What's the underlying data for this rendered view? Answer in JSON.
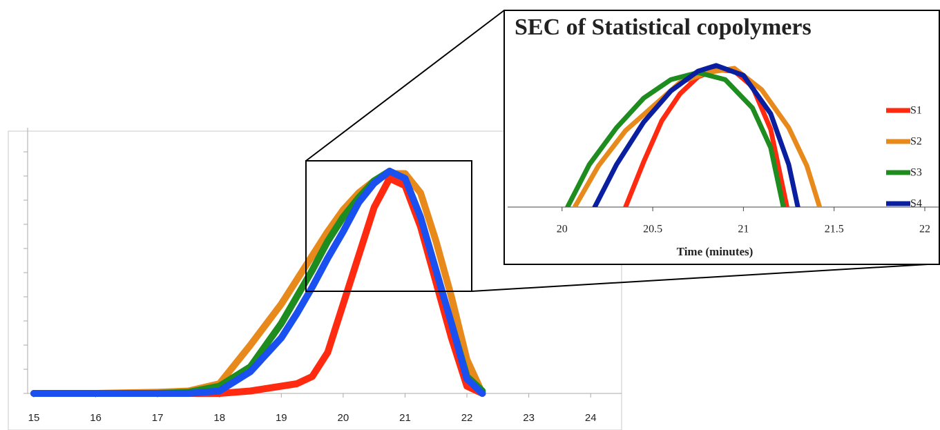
{
  "chart_data": [
    {
      "type": "line",
      "xlim": [
        14.9,
        24.5
      ],
      "xticks": [
        15,
        16,
        17,
        18,
        19,
        20,
        21,
        22,
        23,
        24
      ],
      "ylim": [
        0,
        1.1
      ],
      "yticks": [
        0,
        0.1,
        0.2,
        0.3,
        0.4,
        0.5,
        0.6,
        0.7,
        0.8,
        0.9,
        1.0
      ],
      "x": [
        15,
        16,
        17,
        17.5,
        18,
        18.5,
        19,
        19.25,
        19.5,
        19.75,
        20,
        20.25,
        20.5,
        20.75,
        21,
        21.25,
        21.5,
        21.75,
        22,
        22.25
      ],
      "series": [
        {
          "name": "S2",
          "color": "#e8891c",
          "values": [
            0,
            0,
            0.005,
            0.01,
            0.04,
            0.2,
            0.37,
            0.47,
            0.57,
            0.67,
            0.76,
            0.83,
            0.88,
            0.91,
            0.91,
            0.83,
            0.63,
            0.4,
            0.14,
            0
          ]
        },
        {
          "name": "S3",
          "color": "#1e8c1e",
          "values": [
            0,
            0,
            0,
            0.005,
            0.03,
            0.11,
            0.29,
            0.4,
            0.51,
            0.63,
            0.73,
            0.81,
            0.88,
            0.92,
            0.87,
            0.71,
            0.5,
            0.29,
            0.07,
            0.01
          ]
        },
        {
          "name": "S1",
          "color": "#ff2a10",
          "values": [
            0,
            0,
            0,
            0,
            0,
            0.01,
            0.03,
            0.04,
            0.07,
            0.17,
            0.37,
            0.57,
            0.77,
            0.89,
            0.86,
            0.69,
            0.46,
            0.23,
            0.03,
            0
          ]
        },
        {
          "name": "S4",
          "color": "#1a50f0",
          "values": [
            0,
            0,
            0,
            0,
            0.01,
            0.09,
            0.23,
            0.33,
            0.44,
            0.56,
            0.67,
            0.79,
            0.87,
            0.92,
            0.89,
            0.73,
            0.51,
            0.29,
            0.06,
            0
          ]
        }
      ]
    },
    {
      "type": "line",
      "title": "SEC of Statistical copolymers",
      "x_label": "Time (minutes)",
      "xlim": [
        19.7,
        22.08
      ],
      "xticks": [
        20,
        20.5,
        21,
        21.5,
        22
      ],
      "ylim": [
        0,
        1.17
      ],
      "legend": "right",
      "series": [
        {
          "name": "S1",
          "color": "#ff2a10",
          "x": [
            20.35,
            20.45,
            20.55,
            20.65,
            20.75,
            20.85,
            20.95,
            21.05,
            21.15,
            21.24
          ],
          "values": [
            0,
            0.32,
            0.61,
            0.8,
            0.92,
            0.97,
            0.96,
            0.85,
            0.55,
            0
          ]
        },
        {
          "name": "S2",
          "color": "#e8891c",
          "x": [
            20.07,
            20.2,
            20.35,
            20.5,
            20.65,
            20.8,
            20.95,
            21.1,
            21.25,
            21.35,
            21.42
          ],
          "values": [
            0,
            0.29,
            0.54,
            0.71,
            0.88,
            0.95,
            0.98,
            0.83,
            0.56,
            0.29,
            0
          ]
        },
        {
          "name": "S3",
          "color": "#1e8c1e",
          "x": [
            20.03,
            20.15,
            20.3,
            20.45,
            20.6,
            20.75,
            20.9,
            21.05,
            21.15,
            21.22
          ],
          "values": [
            0,
            0.3,
            0.56,
            0.77,
            0.9,
            0.95,
            0.9,
            0.7,
            0.42,
            0
          ]
        },
        {
          "name": "S4",
          "color": "#0a1ea0",
          "x": [
            20.18,
            20.3,
            20.45,
            20.6,
            20.75,
            20.85,
            21.0,
            21.15,
            21.25,
            21.3
          ],
          "values": [
            0,
            0.3,
            0.6,
            0.82,
            0.96,
            1.0,
            0.93,
            0.66,
            0.3,
            0
          ]
        }
      ]
    }
  ]
}
